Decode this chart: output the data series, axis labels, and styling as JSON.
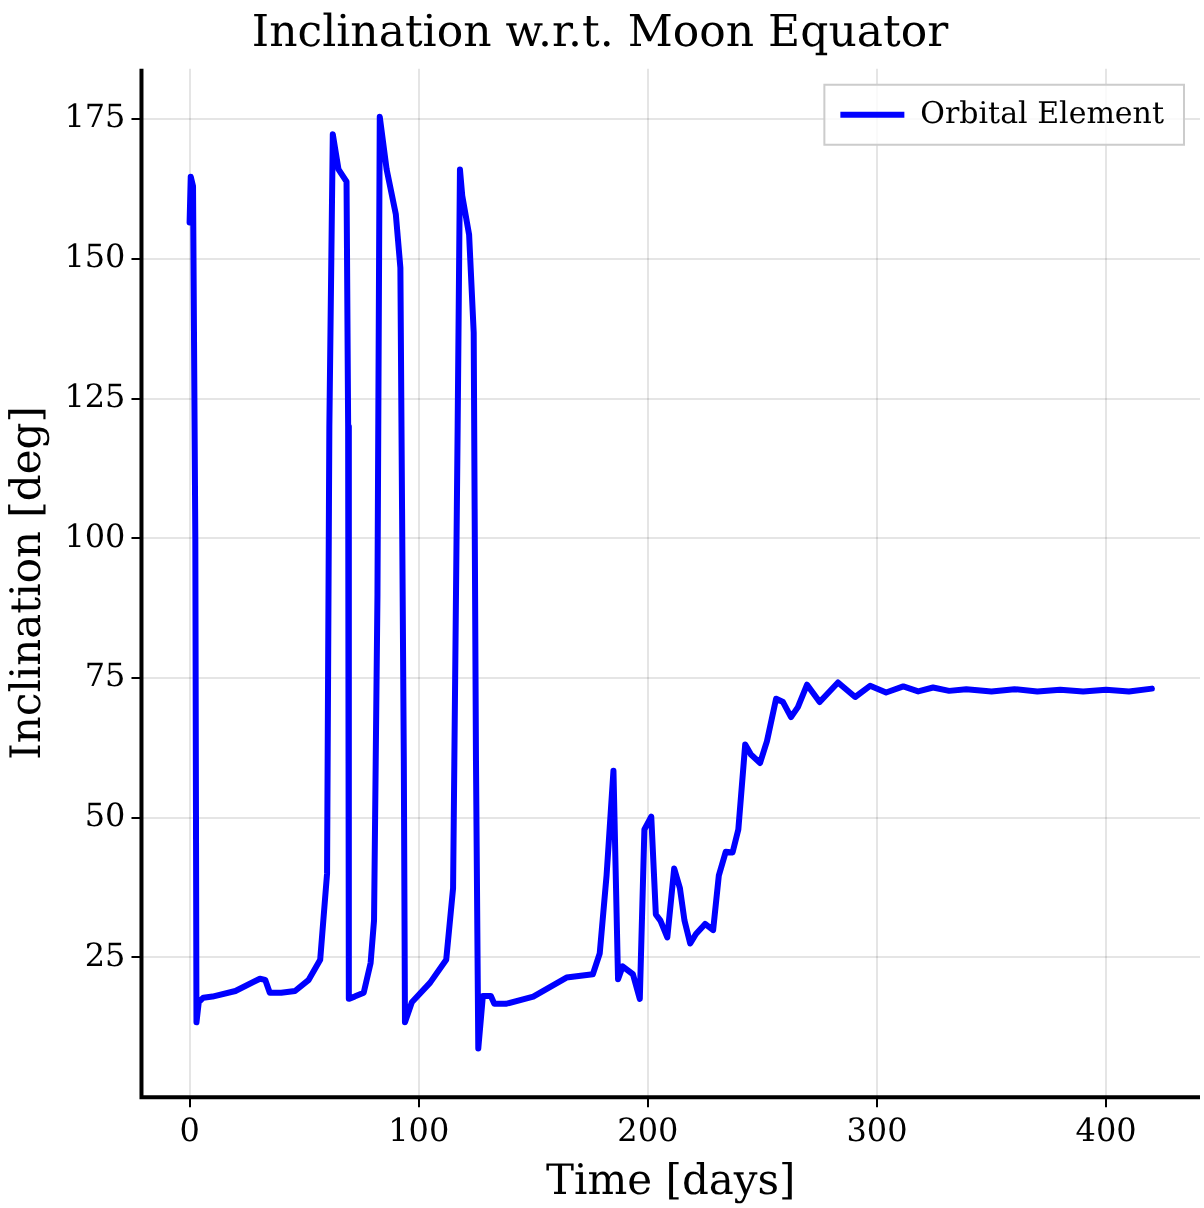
{
  "chart_data": {
    "type": "line",
    "title": "Inclination w.r.t. Moon Equator",
    "xlabel": "Time [days]",
    "ylabel": "Inclination [deg]",
    "xlim": [
      -21,
      441
    ],
    "ylim": [
      0,
      184
    ],
    "xticks": [
      0,
      100,
      200,
      300,
      400
    ],
    "yticks": [
      25,
      50,
      75,
      100,
      125,
      150,
      175
    ],
    "grid": true,
    "legend": "top right",
    "marker": "none",
    "line_style": "solid",
    "series": [
      {
        "name": "Orbital Element",
        "color": "#0000ff",
        "x": [
          0,
          0.5,
          1.5,
          2.5,
          3,
          4,
          6,
          10,
          20,
          30.7,
          33,
          35,
          40,
          46,
          52,
          57,
          60,
          61,
          62.5,
          65,
          68.5,
          69.2,
          69.5,
          72,
          76,
          79,
          80.5,
          82,
          83,
          86,
          90,
          92,
          93.5,
          94,
          97,
          105,
          112,
          115,
          117,
          118,
          119,
          122,
          124,
          125,
          126,
          128,
          131.5,
          133,
          138,
          150,
          164.5,
          176,
          179,
          182,
          185,
          187,
          189,
          193.5,
          196.5,
          198.5,
          201.5,
          203.5,
          205.5,
          208.5,
          211.5,
          214,
          216,
          218.5,
          221,
          225,
          228.5,
          231,
          234,
          237,
          239.5,
          242.5,
          245,
          249,
          252,
          256,
          259,
          262.5,
          265.5,
          269.5,
          275,
          283,
          290.5,
          297,
          304,
          311.5,
          318,
          324.5,
          331.5,
          339,
          350,
          360,
          370,
          380,
          390,
          400,
          410,
          420
        ],
        "values": [
          156.5,
          164.7,
          163,
          100,
          13.4,
          17,
          17.8,
          18,
          19,
          21.2,
          21,
          18.7,
          18.7,
          19,
          21,
          24.6,
          40,
          120,
          172.3,
          166,
          163.8,
          120,
          17.6,
          18,
          18.7,
          24,
          31.6,
          90,
          175.4,
          166,
          158,
          148.4,
          60,
          13.4,
          17,
          20.5,
          24.6,
          37.4,
          120,
          166,
          161.3,
          154.3,
          136.8,
          60,
          8.7,
          18.1,
          18.1,
          16.7,
          16.7,
          18,
          21.4,
          22,
          25.7,
          39.7,
          58.4,
          21.1,
          23.4,
          22,
          17.6,
          47.9,
          50.2,
          32.7,
          31.6,
          28.6,
          40.9,
          37.4,
          31.6,
          27.5,
          29.2,
          31,
          29.9,
          39.7,
          43.9,
          43.8,
          47.9,
          63.1,
          61.3,
          59.8,
          63.7,
          71.3,
          70.7,
          68,
          69.8,
          73.8,
          70.7,
          74.2,
          71.6,
          73.6,
          72.4,
          73.5,
          72.6,
          73.3,
          72.7,
          73,
          72.6,
          73,
          72.6,
          72.9,
          72.6,
          72.9,
          72.6,
          73.1
        ]
      }
    ]
  }
}
